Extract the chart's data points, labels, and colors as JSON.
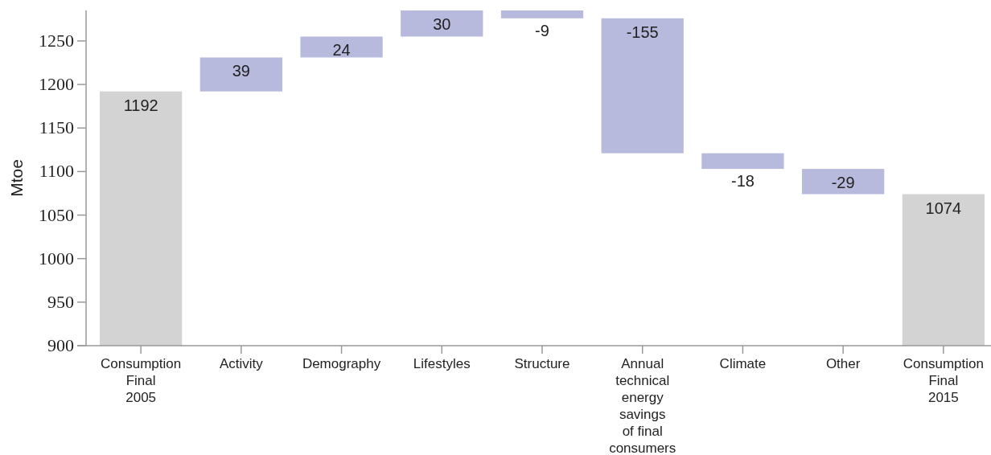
{
  "chart_data": {
    "type": "bar",
    "ylabel": "Mtoe",
    "categories": [
      "Consumption Final 2005",
      "Activity",
      "Demography",
      "Lifestyles",
      "Structure",
      "Annual technical energy savings of final consumers",
      "Climate",
      "Other",
      "Consumption Final 2015"
    ],
    "base": [
      900,
      1192,
      1231,
      1255,
      1285,
      1276,
      1121,
      1103,
      900
    ],
    "values": [
      292,
      39,
      24,
      30,
      -9,
      -155,
      -18,
      -29,
      174
    ],
    "value_labels": [
      "1192",
      "39",
      "24",
      "30",
      "-9",
      "-155",
      "-18",
      "-29",
      "1074"
    ],
    "colors": [
      "#d3d3d3",
      "#b7badc",
      "#b7badc",
      "#b7badc",
      "#b7badc",
      "#b7badc",
      "#b7badc",
      "#b7badc",
      "#d3d3d3"
    ],
    "ylim": [
      900,
      1285
    ],
    "yticks": [
      900,
      950,
      1000,
      1050,
      1100,
      1150,
      1200,
      1250
    ]
  }
}
